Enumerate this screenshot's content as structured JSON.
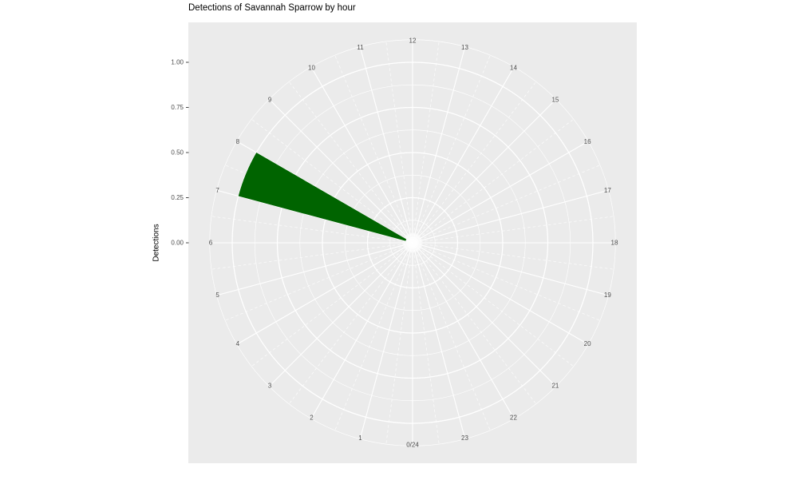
{
  "chart_data": {
    "type": "bar",
    "coordinate_system": "polar",
    "title": "Detections of Savannah Sparrow by hour",
    "ylabel": "Detections",
    "xlabel": "",
    "theta_start": "bottom",
    "theta_direction": "clockwise",
    "categories": [
      "0/24",
      "1",
      "2",
      "3",
      "4",
      "5",
      "6",
      "7",
      "8",
      "9",
      "10",
      "11",
      "12",
      "13",
      "14",
      "15",
      "16",
      "17",
      "18",
      "19",
      "20",
      "21",
      "22",
      "23"
    ],
    "values": [
      0,
      0,
      0,
      0,
      0,
      0,
      0,
      1,
      0,
      0,
      0,
      0,
      0,
      0,
      0,
      0,
      0,
      0,
      0,
      0,
      0,
      0,
      0,
      0
    ],
    "bar_width_hours": 1,
    "r_axis": {
      "range": [
        0,
        1
      ],
      "tick_values": [
        0,
        0.25,
        0.5,
        0.75,
        1.0
      ],
      "tick_labels": [
        "0.00",
        "0.25",
        "0.50",
        "0.75",
        "1.00"
      ],
      "minor_values": [
        0.125,
        0.375,
        0.625,
        0.875,
        1.125
      ]
    },
    "grid": true,
    "legend_position": "none",
    "colors": {
      "bar": "#006400",
      "panel_bg": "#ebebeb",
      "grid": "#ffffff",
      "axis_text": "#4d4d4d",
      "tick_mark": "#333333",
      "title_text": "#000000"
    }
  }
}
